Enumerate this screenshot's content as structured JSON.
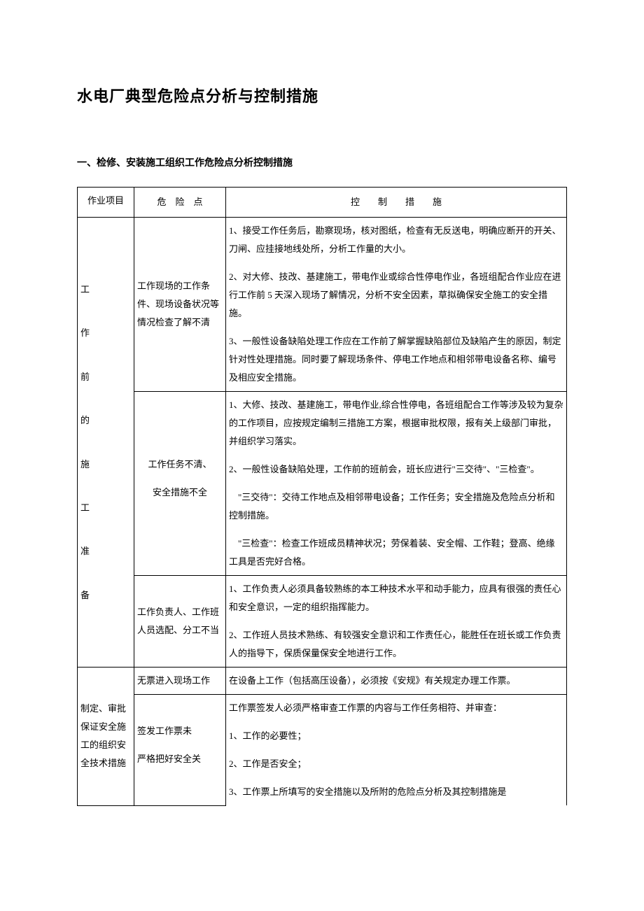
{
  "title": "水电厂典型危险点分析与控制措施",
  "subtitle": "一、检修、安装施工组织工作危险点分析控制措施",
  "headers": {
    "project": "作业项目",
    "risk": "危　险　点",
    "measure": "控　　制　　措　　施"
  },
  "rows": [
    {
      "project": "工\n\n作\n\n前\n\n的\n\n施\n\n工\n\n准\n\n备",
      "project_rowspan": 3,
      "risk": "工作现场的工作条件、现场设备状况等情况检查了解不清",
      "measure_paras": [
        "1、接受工作任务后，勘察现场，核对图纸，检查有无反送电，明确应断开的开关、刀闸、应挂接地线处所，分析工作量的大小。",
        "2、对大修、技改、基建施工，带电作业或综合性停电作业，各班组配合作业应在进行工作前 5 天深入现场了解情况，分析不安全因素，草拟确保安全施工的安全措施。",
        "3、一般性设备缺陷处理工作应在工作前了解掌握缺陷部位及缺陷产生的原因，制定针对性处理措施。同时要了解现场条件、停电工作地点和相邻带电设备名称、编号及相应安全措施。"
      ]
    },
    {
      "risk_paras": [
        "工作任务不清、",
        "安全措施不全"
      ],
      "measure_paras": [
        "1、大修、技改、基建施工，带电作业,综合性停电，各班组配合工作等涉及较为复杂的工作项目，应按规定编制三措施工方案，根据审批权限，报有关上级部门审批，并组织学习落实。",
        "2、一般性设备缺陷处理，工作前的班前会，班长应进行\"三交待\"、\"三检查\"。",
        "　\"三交待\"：交待工作地点及相邻带电设备；工作任务；安全措施及危险点分析和控制措施。",
        "　\"三检查\"：检查工作班成员精神状况；劳保着装、安全帽、工作鞋；登高、绝缘工具是否完好合格。"
      ]
    },
    {
      "risk": "工作负责人、工作班人员选配、分工不当",
      "measure_paras": [
        "1、工作负责人必须具备较熟练的本工种技术水平和动手能力，应具有很强的责任心和安全意识，一定的组织指挥能力。",
        "2、工作班人员技术熟练、有较强安全意识和工作责任心，能胜任在班长或工作负责人的指导下，保质保量保安全地进行工作。"
      ]
    },
    {
      "project": "制定、审批保证安全施工的组织安全技术措施",
      "project_rowspan": 2,
      "risk": "无票进入现场工作",
      "measure_paras": [
        "在设备上工作（包括高压设备），必须按《安规》有关规定办理工作票。"
      ]
    },
    {
      "risk_paras": [
        "签发工作票未",
        "严格把好安全关"
      ],
      "measure_paras": [
        "工作票签发人必须严格审查工作票的内容与工作任务相符、并审查：",
        "1、工作的必要性；",
        "2、工作是否安全；",
        "3、工作票上所填写的安全措施以及所附的危险点分析及其控制措施是"
      ]
    }
  ]
}
